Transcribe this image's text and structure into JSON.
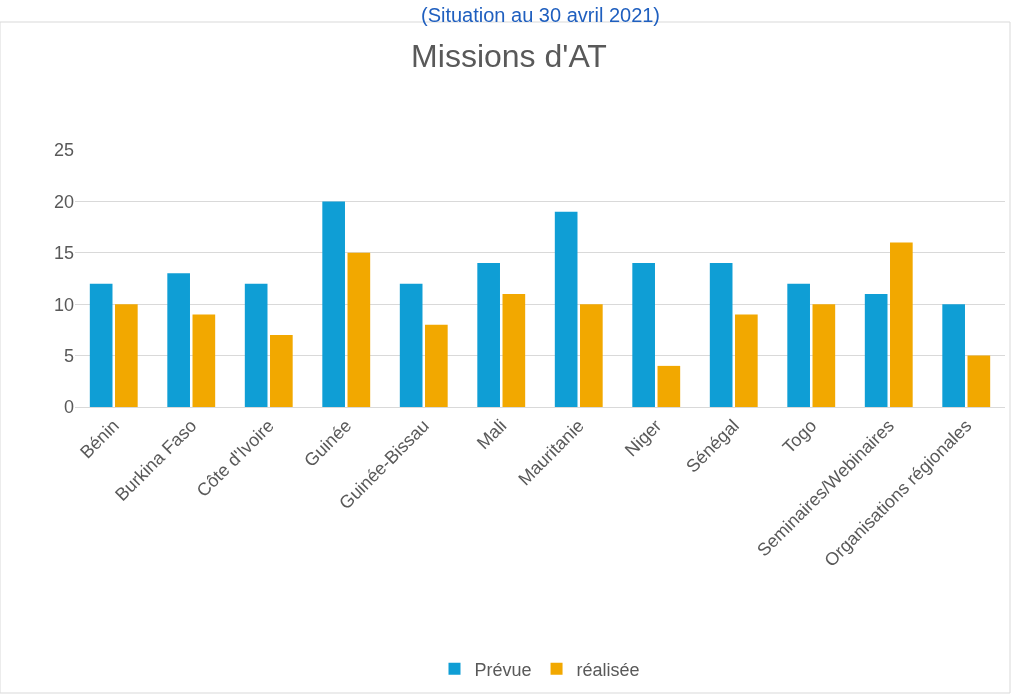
{
  "chart_data": {
    "type": "bar",
    "title": "Missions d'AT",
    "subtitle": "(Situation au 30 avril 2021)",
    "categories": [
      "Bénin",
      "Burkina Faso",
      "Côte d'Ivoire",
      "Guinée",
      "Guinée-Bissau",
      "Mali",
      "Mauritanie",
      "Niger",
      "Sénégal",
      "Togo",
      "Seminaires/Webinaires",
      "Organisations régionales"
    ],
    "series": [
      {
        "name": "Prévue",
        "color": "#0f9ed5",
        "values": [
          12,
          13,
          12,
          20,
          12,
          14,
          19,
          14,
          14,
          12,
          11,
          10
        ]
      },
      {
        "name": "réalisée",
        "color": "#f2a800",
        "values": [
          10,
          9,
          7,
          15,
          8,
          11,
          10,
          4,
          9,
          10,
          16,
          5
        ]
      }
    ],
    "ylim": [
      0,
      25
    ],
    "yticks": [
      0,
      5,
      10,
      15,
      20,
      25
    ],
    "grid": "y",
    "legend": "bottom"
  }
}
